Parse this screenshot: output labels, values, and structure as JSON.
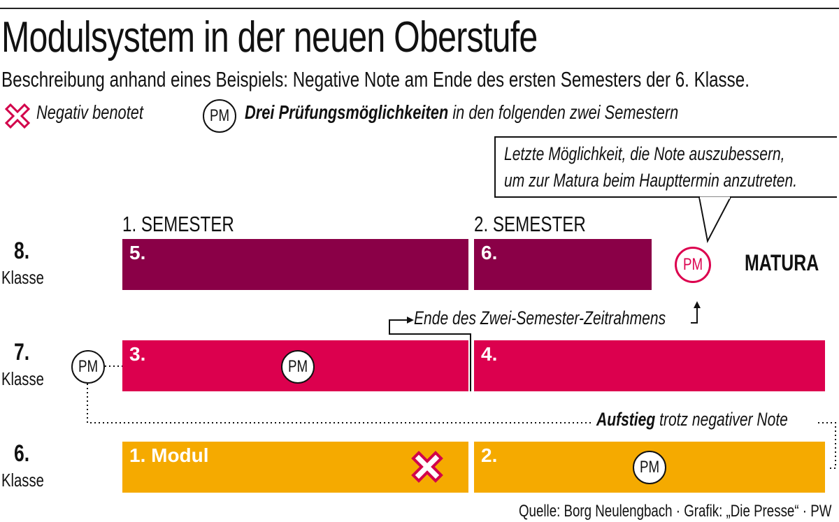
{
  "title": "Modulsystem in der neuen Oberstufe",
  "subtitle": "Beschreibung anhand eines Beispiels: Negative Note am Ende des ersten Semesters der 6. Klasse.",
  "legend": {
    "negative_label": "Negativ benotet",
    "pm_symbol": "PM",
    "pm_bold": "Drei Prüfungsmöglichkeiten",
    "pm_rest": "in den folgenden zwei Semestern"
  },
  "callout": {
    "line1": "Letzte Möglichkeit, die Note auszubessern,",
    "line2": "um zur Matura beim Haupttermin anzutreten."
  },
  "semesters": [
    "1. SEMESTER",
    "2. SEMESTER"
  ],
  "rows": [
    {
      "num": "8.",
      "label": "Klasse",
      "modules": [
        "5.",
        "6."
      ],
      "color": "#8a0047"
    },
    {
      "num": "7.",
      "label": "Klasse",
      "modules": [
        "3.",
        "4."
      ],
      "color": "#dc004e"
    },
    {
      "num": "6.",
      "label": "Klasse",
      "modules": [
        "1. Modul",
        "2."
      ],
      "color": "#f5aa00"
    }
  ],
  "matura": "MATURA",
  "pm": "PM",
  "end_of_timeframe": "Ende des Zwei-Semester-Zeitrahmens",
  "aufstieg_bold": "Aufstieg",
  "aufstieg_rest": "trotz negativer Note",
  "source": "Quelle: Borg Neulengbach · Grafik: „Die Presse“ · PW",
  "colors": {
    "red": "#dc004e",
    "negative_x": "#d2004a"
  }
}
